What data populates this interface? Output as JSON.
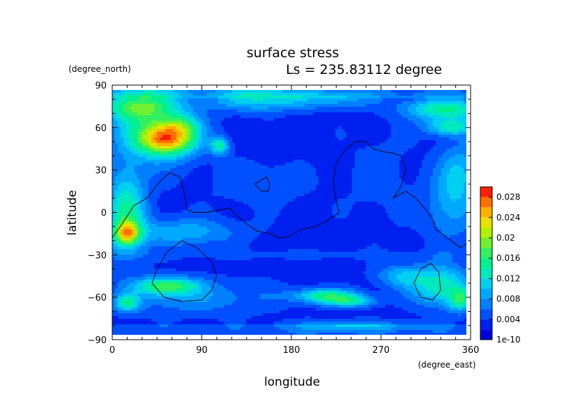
{
  "chart_data": {
    "type": "heatmap",
    "title": "surface stress",
    "subtitle": "Ls = 235.83112 degree",
    "xlabel": "longitude",
    "ylabel": "latitude",
    "x_unit": "(degree_east)",
    "y_unit": "(degree_north)",
    "xlim": [
      0,
      360
    ],
    "ylim": [
      -90,
      90
    ],
    "x_ticks": [
      "0",
      "90",
      "180",
      "270",
      "360"
    ],
    "y_ticks": [
      "90",
      "60",
      "30",
      "0",
      "−30",
      "−60",
      "−90"
    ],
    "colorbar": {
      "min": 1e-10,
      "max": 0.03,
      "step": 0.002,
      "tick_labels": [
        "1e-10",
        "0.004",
        "0.008",
        "0.012",
        "0.016",
        "0.02",
        "0.024",
        "0.028"
      ],
      "tick_values": [
        0,
        0.004,
        0.008,
        0.012,
        0.016,
        0.02,
        0.024,
        0.028
      ],
      "colors": [
        "#0000d8",
        "#0020f0",
        "#0050ff",
        "#0080ff",
        "#00a8ff",
        "#00d0f0",
        "#00e8c0",
        "#00f090",
        "#30f060",
        "#70f030",
        "#b0f000",
        "#e8e000",
        "#ffb000",
        "#ff7000",
        "#ff2000"
      ]
    },
    "background_level": 0.0033,
    "features": [
      {
        "lon": 55,
        "lat": 52,
        "rlon": 28,
        "rlat": 11,
        "value": 0.0195
      },
      {
        "lon": 70,
        "lat": 62,
        "rlon": 18,
        "rlat": 7,
        "value": 0.0055
      },
      {
        "lon": 108,
        "lat": 47,
        "rlon": 9,
        "rlat": 6,
        "value": 0.0105
      },
      {
        "lon": 40,
        "lat": 62,
        "rlon": 45,
        "rlat": 28,
        "value": 0.0075
      },
      {
        "lon": 25,
        "lat": 75,
        "rlon": 35,
        "rlat": 10,
        "value": 0.0105
      },
      {
        "lon": 150,
        "lat": 80,
        "rlon": 50,
        "rlat": 8,
        "value": 0.009
      },
      {
        "lon": 230,
        "lat": 80,
        "rlon": 40,
        "rlat": 6,
        "value": 0.005
      },
      {
        "lon": 335,
        "lat": 73,
        "rlon": 40,
        "rlat": 8,
        "value": 0.0115
      },
      {
        "lon": 340,
        "lat": 60,
        "rlon": 25,
        "rlat": 6,
        "value": 0.0095
      },
      {
        "lon": 14,
        "lat": 0,
        "rlon": 20,
        "rlat": 30,
        "value": 0.011
      },
      {
        "lon": 15,
        "lat": -15,
        "rlon": 12,
        "rlat": 8,
        "value": 0.0135
      },
      {
        "lon": 70,
        "lat": -14,
        "rlon": 55,
        "rlat": 10,
        "value": 0.006
      },
      {
        "lon": 340,
        "lat": 5,
        "rlon": 25,
        "rlat": 25,
        "value": 0.0055
      },
      {
        "lon": 55,
        "lat": -52,
        "rlon": 30,
        "rlat": 6,
        "value": 0.0125
      },
      {
        "lon": 80,
        "lat": -60,
        "rlon": 80,
        "rlat": 12,
        "value": 0.0045
      },
      {
        "lon": 15,
        "lat": -64,
        "rlon": 12,
        "rlat": 6,
        "value": 0.0095
      },
      {
        "lon": 215,
        "lat": -59,
        "rlon": 32,
        "rlat": 5,
        "value": 0.0115
      },
      {
        "lon": 240,
        "lat": -63,
        "rlon": 25,
        "rlat": 4,
        "value": 0.0085
      },
      {
        "lon": 330,
        "lat": -52,
        "rlon": 30,
        "rlat": 14,
        "value": 0.0105
      },
      {
        "lon": 350,
        "lat": -62,
        "rlon": 12,
        "rlat": 8,
        "value": 0.0095
      },
      {
        "lon": 290,
        "lat": -45,
        "rlon": 25,
        "rlat": 8,
        "value": 0.006
      },
      {
        "lon": 240,
        "lat": -80,
        "rlon": 60,
        "rlat": 4,
        "value": 0.0055
      },
      {
        "lon": 180,
        "lat": -30,
        "rlon": 180,
        "rlat": 3,
        "value": 0.0018
      },
      {
        "lon": 150,
        "lat": 20,
        "rlon": 45,
        "rlat": 15,
        "value": 0.0025
      },
      {
        "lon": 270,
        "lat": 25,
        "rlon": 35,
        "rlat": 35,
        "value": 0.0015
      },
      {
        "lon": 350,
        "lat": 30,
        "rlon": 20,
        "rlat": 20,
        "value": 0.0055
      }
    ],
    "topography_contours": [
      [
        [
          0,
          -18
        ],
        [
          10,
          -8
        ],
        [
          22,
          5
        ],
        [
          35,
          10
        ],
        [
          48,
          22
        ],
        [
          58,
          28
        ],
        [
          68,
          25
        ],
        [
          73,
          12
        ],
        [
          75,
          2
        ],
        [
          82,
          0
        ],
        [
          95,
          0
        ],
        [
          110,
          2
        ],
        [
          118,
          3
        ],
        [
          125,
          -2
        ],
        [
          135,
          -8
        ],
        [
          145,
          -13
        ],
        [
          158,
          -15
        ],
        [
          168,
          -18
        ],
        [
          178,
          -17
        ],
        [
          190,
          -12
        ],
        [
          205,
          -10
        ],
        [
          218,
          -5
        ],
        [
          228,
          0
        ],
        [
          225,
          8
        ],
        [
          222,
          22
        ],
        [
          225,
          35
        ],
        [
          235,
          45
        ],
        [
          245,
          50
        ],
        [
          255,
          50
        ],
        [
          262,
          45
        ],
        [
          272,
          43
        ],
        [
          282,
          42
        ],
        [
          290,
          40
        ],
        [
          295,
          30
        ],
        [
          290,
          18
        ],
        [
          282,
          10
        ],
        [
          295,
          15
        ],
        [
          305,
          10
        ],
        [
          315,
          2
        ],
        [
          322,
          -5
        ],
        [
          325,
          -12
        ],
        [
          335,
          -17
        ],
        [
          350,
          -25
        ],
        [
          360,
          -20
        ]
      ],
      [
        [
          143,
          20
        ],
        [
          150,
          23
        ],
        [
          155,
          25
        ],
        [
          158,
          20
        ],
        [
          157,
          15
        ],
        [
          150,
          15
        ],
        [
          143,
          20
        ]
      ],
      [
        [
          40,
          -50
        ],
        [
          45,
          -40
        ],
        [
          55,
          -28
        ],
        [
          70,
          -20
        ],
        [
          85,
          -25
        ],
        [
          100,
          -35
        ],
        [
          105,
          -45
        ],
        [
          100,
          -55
        ],
        [
          90,
          -62
        ],
        [
          70,
          -63
        ],
        [
          52,
          -60
        ],
        [
          40,
          -50
        ]
      ],
      [
        [
          303,
          -50
        ],
        [
          310,
          -40
        ],
        [
          320,
          -36
        ],
        [
          328,
          -42
        ],
        [
          330,
          -55
        ],
        [
          322,
          -62
        ],
        [
          310,
          -60
        ],
        [
          303,
          -50
        ]
      ]
    ]
  }
}
